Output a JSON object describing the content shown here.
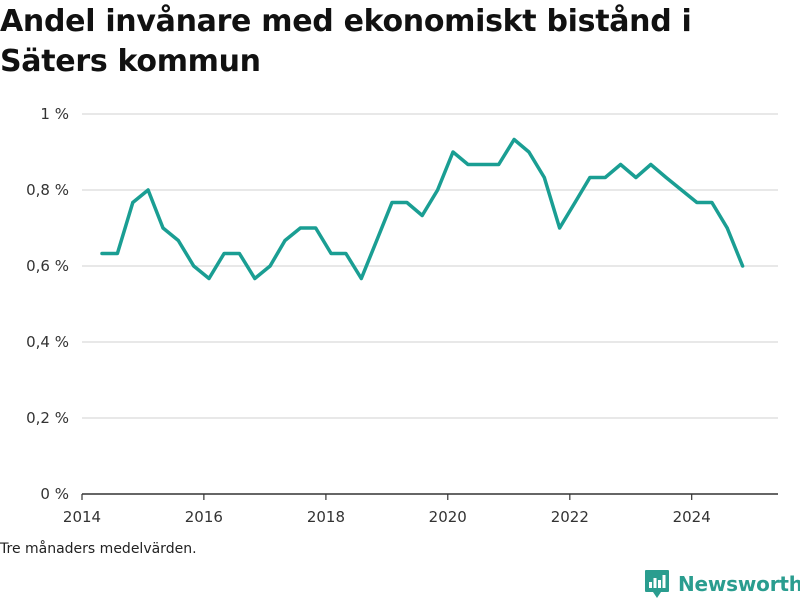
{
  "chart_data": {
    "type": "line",
    "title": "Andel invånare med ekonomiskt bistånd i Säters kommun",
    "xlabel": "",
    "ylabel": "",
    "ylim": [
      0,
      1
    ],
    "xlim": [
      "2014-01-01",
      "2025-06-01"
    ],
    "y_ticks": [
      "0 %",
      "0,2 %",
      "0,4 %",
      "0,6 %",
      "0,8 %",
      "1 %"
    ],
    "y_tick_values": [
      0,
      0.2,
      0.4,
      0.6,
      0.8,
      1
    ],
    "x_ticks": [
      "2014",
      "2016",
      "2018",
      "2020",
      "2022",
      "2024"
    ],
    "grid": true,
    "line_color": "#1a9e93",
    "series": [
      {
        "x": [
          "2014-05",
          "2014-08",
          "2014-11",
          "2015-02",
          "2015-05",
          "2015-08",
          "2015-11",
          "2016-02",
          "2016-05",
          "2016-08",
          "2016-11",
          "2017-02",
          "2017-05",
          "2017-08",
          "2017-11",
          "2018-02",
          "2018-05",
          "2018-08",
          "2018-11",
          "2019-02",
          "2019-05",
          "2019-08",
          "2019-11",
          "2020-02",
          "2020-05",
          "2020-08",
          "2020-11",
          "2021-02",
          "2021-05",
          "2021-08",
          "2021-11",
          "2022-02",
          "2022-05",
          "2022-08",
          "2022-11",
          "2023-02",
          "2023-05",
          "2023-08",
          "2023-11",
          "2024-02",
          "2024-05",
          "2024-08",
          "2024-11"
        ],
        "values": [
          0.633,
          0.633,
          0.767,
          0.8,
          0.7,
          0.667,
          0.6,
          0.567,
          0.633,
          0.633,
          0.567,
          0.6,
          0.667,
          0.7,
          0.7,
          0.633,
          0.633,
          0.567,
          0.667,
          0.767,
          0.767,
          0.733,
          0.8,
          0.9,
          0.867,
          0.867,
          0.867,
          0.933,
          0.9,
          0.833,
          0.7,
          0.767,
          0.833,
          0.833,
          0.867,
          0.833,
          0.867,
          0.833,
          0.8,
          0.767,
          0.767,
          0.7,
          0.6
        ]
      }
    ]
  },
  "footnote": "Tre månaders medelvärden.",
  "brand": {
    "name": "Newsworthy",
    "icon": "newsworthy-logo-icon",
    "color": "#2a9d8f"
  }
}
